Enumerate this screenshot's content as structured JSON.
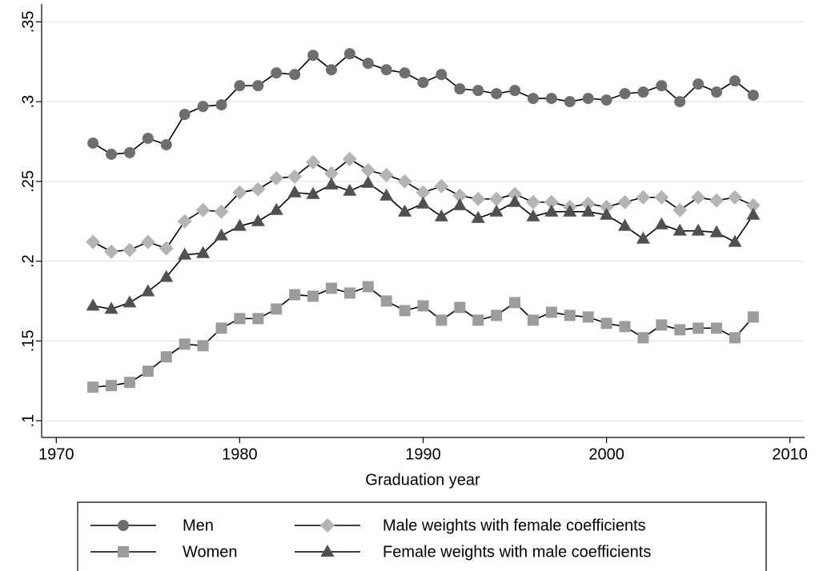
{
  "chart_data": {
    "type": "line",
    "x_label": "Graduation year",
    "x": [
      1972,
      1973,
      1974,
      1975,
      1976,
      1977,
      1978,
      1979,
      1980,
      1981,
      1982,
      1983,
      1984,
      1985,
      1986,
      1987,
      1988,
      1989,
      1990,
      1991,
      1992,
      1993,
      1994,
      1995,
      1996,
      1997,
      1998,
      1999,
      2000,
      2001,
      2002,
      2003,
      2004,
      2005,
      2006,
      2007,
      2008
    ],
    "series": [
      {
        "name": "Men",
        "color": "#6e6e6e",
        "marker": "circle",
        "values": [
          0.274,
          0.267,
          0.268,
          0.277,
          0.273,
          0.292,
          0.297,
          0.298,
          0.31,
          0.31,
          0.318,
          0.317,
          0.329,
          0.32,
          0.33,
          0.324,
          0.32,
          0.318,
          0.312,
          0.317,
          0.308,
          0.307,
          0.305,
          0.307,
          0.302,
          0.302,
          0.3,
          0.302,
          0.301,
          0.305,
          0.306,
          0.31,
          0.3,
          0.311,
          0.306,
          0.313,
          0.304
        ]
      },
      {
        "name": "Male weights with female coefficients",
        "color": "#b4b4b4",
        "marker": "diamond",
        "values": [
          0.212,
          0.206,
          0.207,
          0.212,
          0.208,
          0.225,
          0.232,
          0.231,
          0.243,
          0.245,
          0.252,
          0.253,
          0.262,
          0.255,
          0.264,
          0.257,
          0.254,
          0.25,
          0.243,
          0.247,
          0.241,
          0.239,
          0.239,
          0.242,
          0.237,
          0.237,
          0.234,
          0.236,
          0.234,
          0.237,
          0.24,
          0.24,
          0.232,
          0.24,
          0.238,
          0.24,
          0.235
        ]
      },
      {
        "name": "Women",
        "color": "#9c9c9c",
        "marker": "square",
        "values": [
          0.121,
          0.122,
          0.124,
          0.131,
          0.14,
          0.148,
          0.147,
          0.158,
          0.164,
          0.164,
          0.17,
          0.179,
          0.178,
          0.183,
          0.18,
          0.184,
          0.175,
          0.169,
          0.172,
          0.163,
          0.171,
          0.163,
          0.166,
          0.174,
          0.163,
          0.168,
          0.166,
          0.165,
          0.161,
          0.159,
          0.152,
          0.16,
          0.157,
          0.158,
          0.158,
          0.152,
          0.165
        ]
      },
      {
        "name": "Female weights with male coefficients",
        "color": "#505050",
        "marker": "triangle",
        "values": [
          0.172,
          0.17,
          0.174,
          0.181,
          0.19,
          0.204,
          0.205,
          0.216,
          0.222,
          0.225,
          0.232,
          0.243,
          0.242,
          0.248,
          0.244,
          0.249,
          0.241,
          0.231,
          0.236,
          0.228,
          0.235,
          0.227,
          0.231,
          0.237,
          0.228,
          0.231,
          0.231,
          0.231,
          0.229,
          0.222,
          0.214,
          0.223,
          0.219,
          0.219,
          0.218,
          0.212,
          0.229
        ]
      }
    ],
    "xlim": [
      1969.2,
      2010.8
    ],
    "xticks": [
      1970,
      1980,
      1990,
      2000,
      2010
    ],
    "ylim": [
      0.0895,
      0.3612
    ],
    "yticks": [
      {
        "value": 0.1,
        "label": ".1"
      },
      {
        "value": 0.15,
        "label": ".15"
      },
      {
        "value": 0.2,
        "label": ".2"
      },
      {
        "value": 0.25,
        "label": ".25"
      },
      {
        "value": 0.3,
        "label": ".3"
      },
      {
        "value": 0.35,
        "label": ".35"
      }
    ],
    "grid": true,
    "legend": "bottom"
  }
}
